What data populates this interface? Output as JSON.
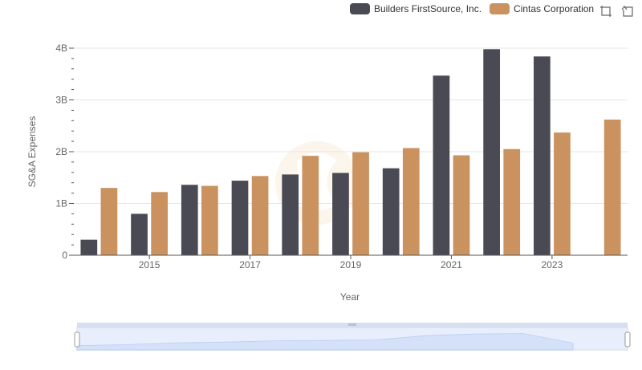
{
  "legend": {
    "items": [
      {
        "label": "Builders FirstSource, Inc.",
        "color": "#4a4a55"
      },
      {
        "label": "Cintas Corporation",
        "color": "#c9925e"
      }
    ]
  },
  "toolbox": {
    "icons": [
      "zoom-icon",
      "restore-icon"
    ]
  },
  "chart_data": {
    "type": "bar",
    "x": [
      2014,
      2015,
      2016,
      2017,
      2018,
      2019,
      2020,
      2021,
      2022,
      2023,
      2024
    ],
    "x_tick_labels": [
      "2015",
      "2017",
      "2019",
      "2021",
      "2023"
    ],
    "series": [
      {
        "name": "Builders FirstSource, Inc.",
        "color": "#4a4a55",
        "values": [
          0.3,
          0.8,
          1.36,
          1.44,
          1.56,
          1.59,
          1.68,
          3.47,
          3.98,
          3.84,
          null
        ]
      },
      {
        "name": "Cintas Corporation",
        "color": "#c9925e",
        "values": [
          1.3,
          1.22,
          1.34,
          1.53,
          1.92,
          1.99,
          2.07,
          1.93,
          2.05,
          2.37,
          2.62
        ]
      }
    ],
    "xlabel": "Year",
    "ylabel": "SG&A Expenses",
    "ylim": [
      0,
      4
    ],
    "y_tick_labels": [
      "0",
      "1B",
      "2B",
      "3B",
      "4B"
    ],
    "grid": true,
    "legend_position": "top-right",
    "datazoom": {
      "visible": true,
      "range_percent": [
        0,
        100
      ]
    }
  }
}
